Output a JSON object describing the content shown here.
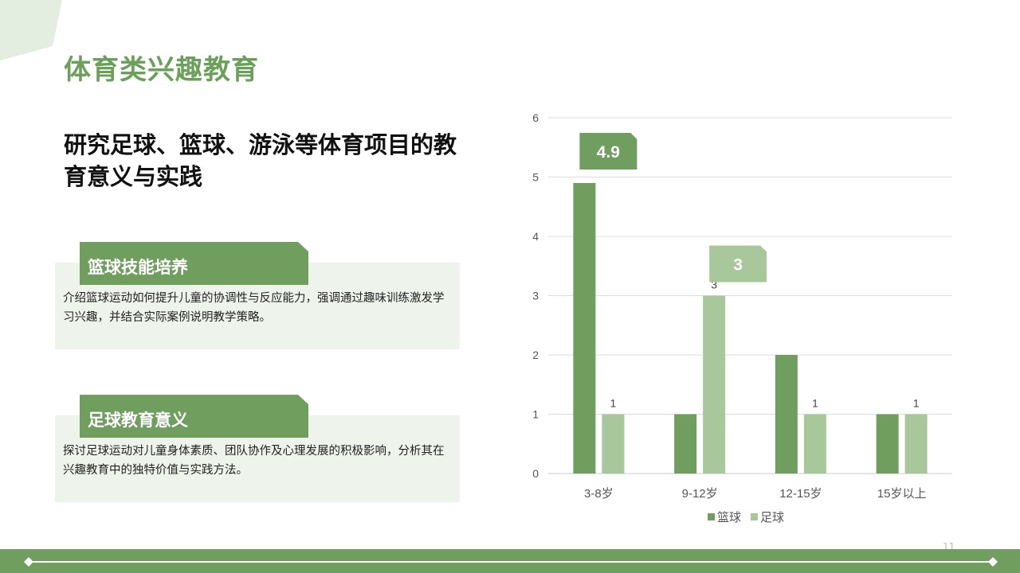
{
  "slide": {
    "title": "体育类兴趣教育",
    "headline": "研究足球、篮球、游泳等体育项目的教育意义与实践",
    "page_number": "11",
    "accent_color": "#6f9e5e",
    "light_color": "#a8c79b"
  },
  "cards": [
    {
      "heading": "篮球技能培养",
      "text": "介绍篮球运动如何提升儿童的协调性与反应能力，强调通过趣味训练激发学习兴趣，并结合实际案例说明教学策略。"
    },
    {
      "heading": "足球教育意义",
      "text": "探讨足球运动对儿童身体素质、团队协作及心理发展的积极影响，分析其在兴趣教育中的独特价值与实践方法。"
    }
  ],
  "chart_data": {
    "type": "bar",
    "categories": [
      "3-8岁",
      "9-12岁",
      "12-15岁",
      "15岁以上"
    ],
    "series": [
      {
        "name": "篮球",
        "values": [
          4.9,
          1,
          2,
          1
        ],
        "color": "#6f9e5e"
      },
      {
        "name": "足球",
        "values": [
          1,
          3,
          1,
          1
        ],
        "color": "#a8c79b"
      }
    ],
    "data_labels": {
      "篮球": [
        null,
        null,
        null,
        null
      ],
      "足球": [
        "1",
        "3",
        "1",
        "1"
      ]
    },
    "callouts": [
      {
        "text": "4.9",
        "series": 0,
        "category": 0
      },
      {
        "text": "3",
        "series": 1,
        "category": 1
      }
    ],
    "ylim": [
      0,
      6
    ],
    "yticks": [
      0,
      1,
      2,
      3,
      4,
      5,
      6
    ],
    "grid": true,
    "legend": "bottom"
  }
}
